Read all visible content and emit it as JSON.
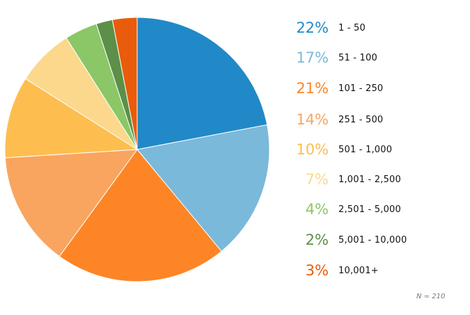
{
  "chart_data": {
    "type": "pie",
    "start_angle_deg": 0,
    "direction": "clockwise",
    "slices": [
      {
        "label": "1 - 50",
        "percent_label": "22%",
        "value": 22,
        "color": "#2189C8"
      },
      {
        "label": "51 - 100",
        "percent_label": "17%",
        "value": 17,
        "color": "#7AB9DA"
      },
      {
        "label": "101 - 250",
        "percent_label": "21%",
        "value": 21,
        "color": "#FD8526"
      },
      {
        "label": "251 - 500",
        "percent_label": "14%",
        "value": 14,
        "color": "#F9A560"
      },
      {
        "label": "501 - 1,000",
        "percent_label": "10%",
        "value": 10,
        "color": "#FDBE4F"
      },
      {
        "label": "1,001 - 2,500",
        "percent_label": "7%",
        "value": 7,
        "color": "#FBD88C"
      },
      {
        "label": "2,501 - 5,000",
        "percent_label": "4%",
        "value": 4,
        "color": "#8BC766"
      },
      {
        "label": "5,001 - 10,000",
        "percent_label": "2%",
        "value": 2,
        "color": "#5C8F48"
      },
      {
        "label": "10,001+",
        "percent_label": "3%",
        "value": 3,
        "color": "#E85C0C"
      }
    ],
    "legend_position": "right",
    "note": "N = 210"
  }
}
